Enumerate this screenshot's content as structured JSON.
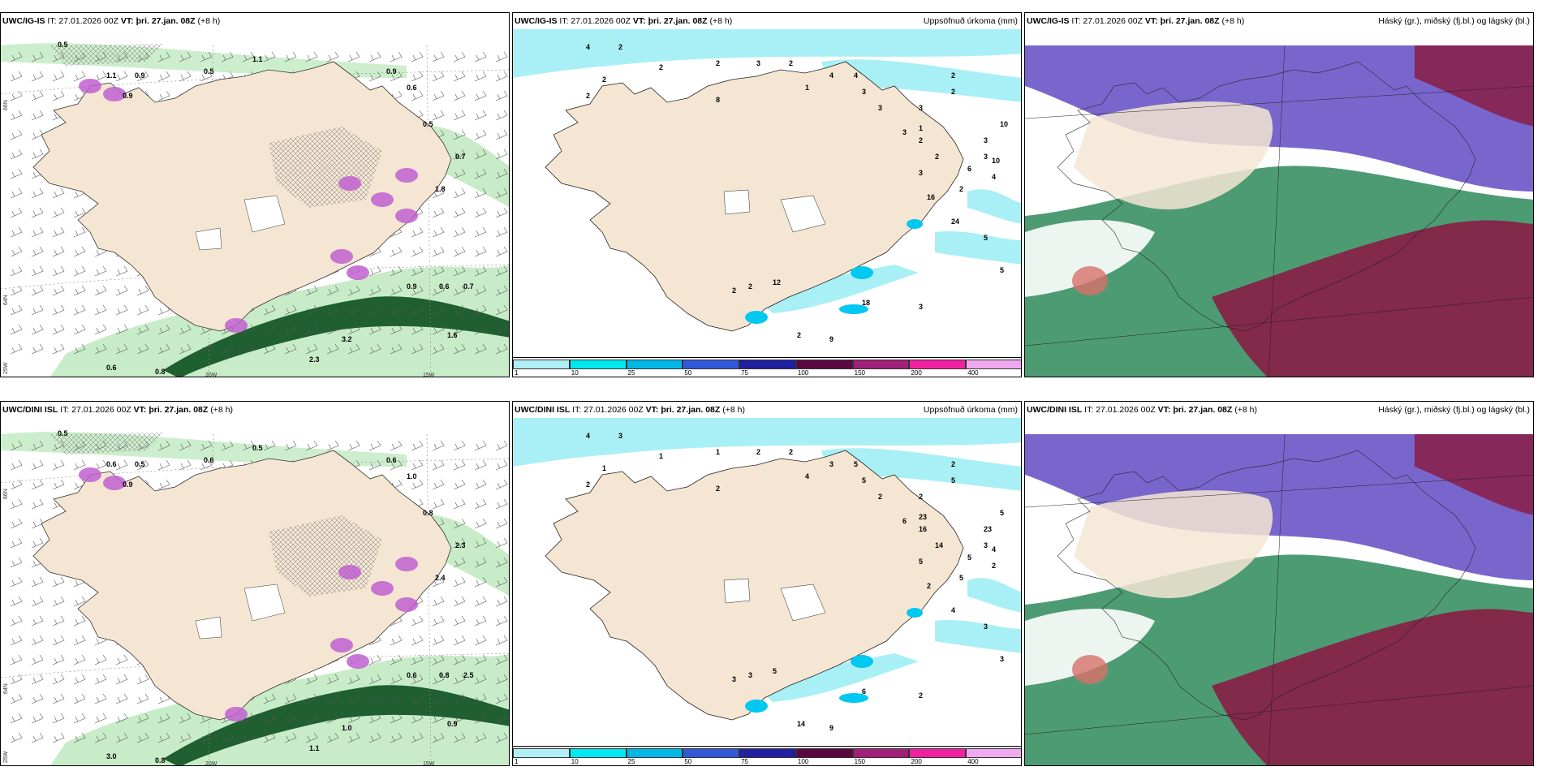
{
  "colors": {
    "land": "#f5e6d3",
    "sea": "#ffffff",
    "precip_light": "#a8f0f5",
    "green_light": "#c8ecc8",
    "green_dark": "#1f5f30",
    "magenta": "#c060d0",
    "cloud_high": "#6a55c8",
    "cloud_mid": "#2e8a5a",
    "cloud_low": "#8a1d45"
  },
  "rows": [
    {
      "model": "UWC/IG-IS",
      "issue": "IT: 27.01.2026 00Z",
      "vt_label": "VT:",
      "vt_value": "þri. 27.jan. 08Z",
      "lead": "(+8 h)",
      "precip_title": "Uppsöfnuð úrkoma (mm)",
      "cloud_title": "Háský (gr.), miðský (fj.bl.) og lágský (bl.)",
      "left_numbers": [
        "0.5",
        "1.1",
        "0.9",
        "0.5",
        "1.1",
        "0.9",
        "0.6",
        "0.9",
        "0.5",
        "0.7",
        "1.8",
        "0.6",
        "0.9",
        "0.7",
        "0.6",
        "0.8",
        "3.2",
        "2.3",
        "1.6"
      ],
      "precip_numbers": [
        "4",
        "2",
        "2",
        "2",
        "2",
        "2",
        "3",
        "2",
        "1",
        "4",
        "4",
        "3",
        "3",
        "3",
        "2",
        "2",
        "3",
        "2",
        "3",
        "3",
        "4",
        "2",
        "6",
        "2",
        "1",
        "3",
        "10",
        "10",
        "16",
        "24",
        "5",
        "5",
        "3",
        "2",
        "9",
        "18",
        "12",
        "2",
        "2",
        "8"
      ]
    },
    {
      "model": "UWC/DINI ISL",
      "issue": "IT: 27.01.2026 00Z",
      "vt_label": "VT:",
      "vt_value": "þri. 27.jan. 08Z",
      "lead": "(+8 h)",
      "precip_title": "Uppsöfnuð úrkoma (mm)",
      "cloud_title": "Háský (gr.), miðský (fj.bl.) og lágský (bl.)",
      "left_numbers": [
        "0.5",
        "0.6",
        "0.5",
        "0.6",
        "0.5",
        "0.6",
        "1.0",
        "0.9",
        "0.8",
        "2.3",
        "2.4",
        "0.8",
        "0.6",
        "2.5",
        "3.0",
        "0.8",
        "1.0",
        "1.1",
        "0.9"
      ],
      "precip_numbers": [
        "4",
        "3",
        "1",
        "1",
        "2",
        "1",
        "2",
        "2",
        "4",
        "3",
        "5",
        "5",
        "2",
        "2",
        "2",
        "5",
        "6",
        "16",
        "23",
        "3",
        "2",
        "5",
        "5",
        "14",
        "23",
        "5",
        "5",
        "4",
        "2",
        "4",
        "3",
        "3",
        "2",
        "14",
        "9",
        "6",
        "5",
        "3",
        "3",
        "2"
      ]
    }
  ],
  "lon_labels": [
    "20W",
    "15W"
  ],
  "lat_labels": [
    "66N",
    "64N",
    "25W"
  ],
  "colorbar": {
    "labels": [
      "1",
      "10",
      "25",
      "50",
      "75",
      "100",
      "150",
      "200",
      "400"
    ],
    "colors": [
      "#aef0f5",
      "#00e8f0",
      "#00b8e8",
      "#3058d8",
      "#2020a0",
      "#5a0840",
      "#a0207a",
      "#f020a0",
      "#f0a8f0"
    ]
  }
}
